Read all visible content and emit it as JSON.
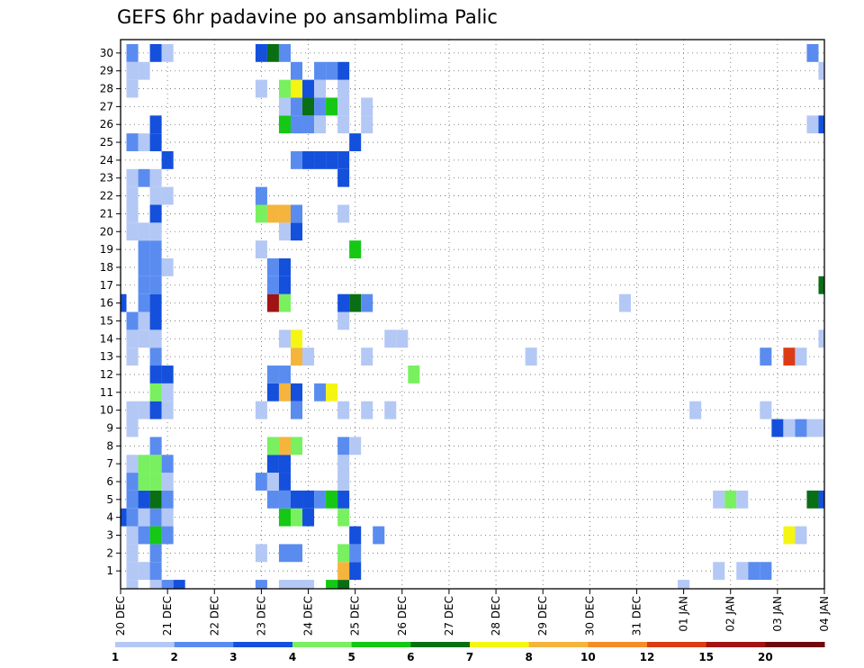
{
  "chart_data": {
    "type": "heatmap",
    "title": "GEFS 6hr padavine po ansamblima Palic",
    "x_tick_labels": [
      "20 DEC",
      "21 DEC",
      "22 DEC",
      "23 DEC",
      "24 DEC",
      "25 DEC",
      "26 DEC",
      "27 DEC",
      "28 DEC",
      "29 DEC",
      "30 DEC",
      "31 DEC",
      "01 JAN",
      "02 JAN",
      "03 JAN",
      "04 JAN"
    ],
    "y_tick_labels": [
      "1",
      "2",
      "3",
      "4",
      "5",
      "6",
      "7",
      "8",
      "9",
      "10",
      "11",
      "12",
      "13",
      "14",
      "15",
      "16",
      "17",
      "18",
      "19",
      "20",
      "21",
      "22",
      "23",
      "24",
      "25",
      "26",
      "27",
      "28",
      "29",
      "30"
    ],
    "xlim": [
      0,
      15
    ],
    "ylim": [
      0,
      30
    ],
    "x_step_days": 0.25,
    "grid": "dotted",
    "legend": {
      "placement": "bottom",
      "labels": [
        "1",
        "2",
        "3",
        "4",
        "5",
        "6",
        "7",
        "8",
        "10",
        "12",
        "15",
        "20"
      ],
      "colors": [
        "#b4c8f5",
        "#5a8cf0",
        "#1450dc",
        "#78f060",
        "#14c814",
        "#0a6e14",
        "#f5f514",
        "#f5b43c",
        "#f58c28",
        "#dc3c14",
        "#a01414",
        "#6e0a0a"
      ]
    },
    "class_colors": [
      "#b4c8f5",
      "#5a8cf0",
      "#1450dc",
      "#78f060",
      "#14c814",
      "#0a6e14",
      "#f5f514",
      "#f5b43c",
      "#f58c28",
      "#dc3c14",
      "#a01414"
    ],
    "cells": [
      [
        0.25,
        0,
        1
      ],
      [
        0.75,
        0,
        1
      ],
      [
        1,
        0,
        2
      ],
      [
        1.25,
        0,
        3
      ],
      [
        3,
        0,
        2
      ],
      [
        3.5,
        0,
        1
      ],
      [
        3.75,
        0,
        1
      ],
      [
        4,
        0,
        1
      ],
      [
        4.5,
        0,
        5
      ],
      [
        4.75,
        0,
        6
      ],
      [
        12,
        0,
        1
      ],
      [
        0.25,
        1,
        1
      ],
      [
        0.5,
        1,
        1
      ],
      [
        0.75,
        1,
        2
      ],
      [
        4.75,
        1,
        8
      ],
      [
        5,
        1,
        3
      ],
      [
        12.75,
        1,
        1
      ],
      [
        13.25,
        1,
        1
      ],
      [
        13.5,
        1,
        2
      ],
      [
        13.75,
        1,
        2
      ],
      [
        0.25,
        2,
        1
      ],
      [
        0.75,
        2,
        2
      ],
      [
        3,
        2,
        1
      ],
      [
        3.5,
        2,
        2
      ],
      [
        3.75,
        2,
        2
      ],
      [
        4.75,
        2,
        4
      ],
      [
        5,
        2,
        2
      ],
      [
        0.25,
        3,
        1
      ],
      [
        0.5,
        3,
        2
      ],
      [
        0.75,
        3,
        5
      ],
      [
        1,
        3,
        2
      ],
      [
        5,
        3,
        3
      ],
      [
        5.5,
        3,
        2
      ],
      [
        14.25,
        3,
        7
      ],
      [
        14.5,
        3,
        1
      ],
      [
        0,
        4,
        3
      ],
      [
        0.25,
        4,
        2
      ],
      [
        0.5,
        4,
        1
      ],
      [
        0.75,
        4,
        2
      ],
      [
        1,
        4,
        1
      ],
      [
        3.5,
        4,
        5
      ],
      [
        3.75,
        4,
        4
      ],
      [
        4,
        4,
        3
      ],
      [
        4.75,
        4,
        4
      ],
      [
        0.25,
        5,
        2
      ],
      [
        0.5,
        5,
        3
      ],
      [
        0.75,
        5,
        6
      ],
      [
        1,
        5,
        2
      ],
      [
        3.25,
        5,
        2
      ],
      [
        3.5,
        5,
        2
      ],
      [
        3.75,
        5,
        3
      ],
      [
        4,
        5,
        3
      ],
      [
        4.25,
        5,
        2
      ],
      [
        4.5,
        5,
        5
      ],
      [
        4.75,
        5,
        3
      ],
      [
        12.75,
        5,
        1
      ],
      [
        13,
        5,
        4
      ],
      [
        13.25,
        5,
        1
      ],
      [
        14.75,
        5,
        6
      ],
      [
        15,
        5,
        3
      ],
      [
        0.25,
        6,
        2
      ],
      [
        0.5,
        6,
        4
      ],
      [
        0.75,
        6,
        4
      ],
      [
        1,
        6,
        1
      ],
      [
        3,
        6,
        2
      ],
      [
        3.25,
        6,
        1
      ],
      [
        3.5,
        6,
        3
      ],
      [
        4.75,
        6,
        1
      ],
      [
        0.25,
        7,
        1
      ],
      [
        0.5,
        7,
        4
      ],
      [
        0.75,
        7,
        4
      ],
      [
        1,
        7,
        2
      ],
      [
        3.25,
        7,
        3
      ],
      [
        3.5,
        7,
        3
      ],
      [
        4.75,
        7,
        1
      ],
      [
        0.75,
        8,
        2
      ],
      [
        3.25,
        8,
        4
      ],
      [
        3.5,
        8,
        8
      ],
      [
        3.75,
        8,
        4
      ],
      [
        4.75,
        8,
        2
      ],
      [
        5,
        8,
        1
      ],
      [
        0.25,
        9,
        1
      ],
      [
        14,
        9,
        3
      ],
      [
        14.25,
        9,
        1
      ],
      [
        14.5,
        9,
        2
      ],
      [
        14.75,
        9,
        1
      ],
      [
        15,
        9,
        1
      ],
      [
        0.25,
        10,
        1
      ],
      [
        0.5,
        10,
        1
      ],
      [
        0.75,
        10,
        3
      ],
      [
        1,
        10,
        1
      ],
      [
        3,
        10,
        1
      ],
      [
        3.75,
        10,
        2
      ],
      [
        4.75,
        10,
        1
      ],
      [
        5.25,
        10,
        1
      ],
      [
        5.75,
        10,
        1
      ],
      [
        12.25,
        10,
        1
      ],
      [
        13.75,
        10,
        1
      ],
      [
        0.75,
        11,
        4
      ],
      [
        1,
        11,
        1
      ],
      [
        3.25,
        11,
        3
      ],
      [
        3.5,
        11,
        8
      ],
      [
        3.75,
        11,
        3
      ],
      [
        4.25,
        11,
        2
      ],
      [
        4.5,
        11,
        7
      ],
      [
        0.75,
        12,
        3
      ],
      [
        1,
        12,
        3
      ],
      [
        3.25,
        12,
        2
      ],
      [
        3.5,
        12,
        2
      ],
      [
        6.25,
        12,
        4
      ],
      [
        0.25,
        13,
        1
      ],
      [
        0.75,
        13,
        2
      ],
      [
        3.75,
        13,
        8
      ],
      [
        4,
        13,
        1
      ],
      [
        5.25,
        13,
        1
      ],
      [
        8.75,
        13,
        1
      ],
      [
        13.75,
        13,
        2
      ],
      [
        14.25,
        13,
        10
      ],
      [
        14.5,
        13,
        1
      ],
      [
        0.25,
        14,
        1
      ],
      [
        0.5,
        14,
        1
      ],
      [
        0.75,
        14,
        1
      ],
      [
        3.5,
        14,
        1
      ],
      [
        3.75,
        14,
        7
      ],
      [
        5.75,
        14,
        1
      ],
      [
        6,
        14,
        1
      ],
      [
        15,
        14,
        1
      ],
      [
        0.25,
        15,
        2
      ],
      [
        0.5,
        15,
        1
      ],
      [
        0.75,
        15,
        3
      ],
      [
        4.75,
        15,
        1
      ],
      [
        0,
        16,
        3
      ],
      [
        0.5,
        16,
        2
      ],
      [
        0.75,
        16,
        3
      ],
      [
        3.25,
        16,
        11
      ],
      [
        3.5,
        16,
        4
      ],
      [
        4.75,
        16,
        3
      ],
      [
        5,
        16,
        6
      ],
      [
        5.25,
        16,
        2
      ],
      [
        10.75,
        16,
        1
      ],
      [
        0.5,
        17,
        2
      ],
      [
        0.75,
        17,
        2
      ],
      [
        3.25,
        17,
        2
      ],
      [
        3.5,
        17,
        3
      ],
      [
        15,
        17,
        6
      ],
      [
        0.5,
        18,
        2
      ],
      [
        0.75,
        18,
        2
      ],
      [
        1,
        18,
        1
      ],
      [
        3.25,
        18,
        2
      ],
      [
        3.5,
        18,
        3
      ],
      [
        0.5,
        19,
        2
      ],
      [
        0.75,
        19,
        2
      ],
      [
        3,
        19,
        1
      ],
      [
        5,
        19,
        5
      ],
      [
        0.25,
        20,
        1
      ],
      [
        0.5,
        20,
        1
      ],
      [
        0.75,
        20,
        1
      ],
      [
        3.5,
        20,
        1
      ],
      [
        3.75,
        20,
        3
      ],
      [
        0.25,
        21,
        1
      ],
      [
        0.75,
        21,
        3
      ],
      [
        3,
        21,
        4
      ],
      [
        3.25,
        21,
        8
      ],
      [
        3.5,
        21,
        8
      ],
      [
        3.75,
        21,
        2
      ],
      [
        4.75,
        21,
        1
      ],
      [
        0.25,
        22,
        1
      ],
      [
        0.75,
        22,
        1
      ],
      [
        1,
        22,
        1
      ],
      [
        3,
        22,
        2
      ],
      [
        0.25,
        23,
        1
      ],
      [
        0.5,
        23,
        2
      ],
      [
        0.75,
        23,
        1
      ],
      [
        4.75,
        23,
        3
      ],
      [
        1,
        24,
        3
      ],
      [
        3.75,
        24,
        2
      ],
      [
        4,
        24,
        3
      ],
      [
        4.25,
        24,
        3
      ],
      [
        4.5,
        24,
        3
      ],
      [
        4.75,
        24,
        3
      ],
      [
        0.25,
        25,
        2
      ],
      [
        0.5,
        25,
        1
      ],
      [
        0.75,
        25,
        3
      ],
      [
        5,
        25,
        3
      ],
      [
        0.75,
        26,
        3
      ],
      [
        3.75,
        26,
        1
      ],
      [
        14.75,
        26,
        1
      ],
      [
        15,
        26,
        3
      ],
      [
        3.5,
        26,
        5
      ],
      [
        3.75,
        26,
        2
      ],
      [
        4,
        26,
        2
      ],
      [
        4.25,
        26,
        1
      ],
      [
        4.75,
        26,
        1
      ],
      [
        5.25,
        26,
        1
      ],
      [
        3.5,
        27,
        1
      ],
      [
        3.75,
        27,
        2
      ],
      [
        4,
        27,
        6
      ],
      [
        4.25,
        27,
        2
      ],
      [
        4.5,
        27,
        5
      ],
      [
        4.75,
        27,
        1
      ],
      [
        5.25,
        27,
        1
      ],
      [
        0.25,
        28,
        1
      ],
      [
        3,
        28,
        1
      ],
      [
        3.5,
        28,
        4
      ],
      [
        3.75,
        28,
        7
      ],
      [
        4,
        28,
        3
      ],
      [
        4.25,
        28,
        1
      ],
      [
        4.75,
        28,
        1
      ],
      [
        0.25,
        29,
        1
      ],
      [
        0.5,
        29,
        1
      ],
      [
        3.75,
        29,
        2
      ],
      [
        4.25,
        29,
        2
      ],
      [
        4.5,
        29,
        2
      ],
      [
        4.75,
        29,
        3
      ],
      [
        15,
        29,
        1
      ],
      [
        15.25,
        29,
        1
      ],
      [
        0.25,
        30,
        2
      ],
      [
        0.75,
        30,
        3
      ],
      [
        1,
        30,
        1
      ],
      [
        3,
        30,
        3
      ],
      [
        3.25,
        30,
        6
      ],
      [
        3.5,
        30,
        2
      ],
      [
        14.75,
        30,
        2
      ]
    ]
  }
}
